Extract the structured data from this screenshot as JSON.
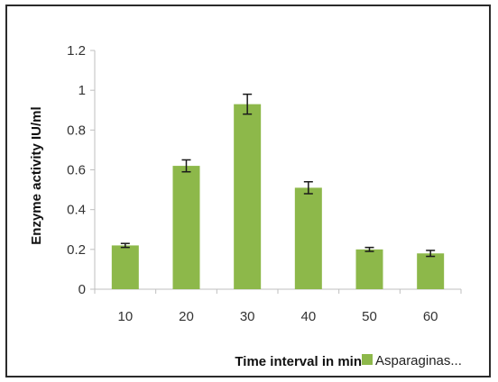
{
  "chart_data": {
    "type": "bar",
    "categories": [
      "10",
      "20",
      "30",
      "40",
      "50",
      "60"
    ],
    "series": [
      {
        "name": "Asparaginas...",
        "values": [
          0.22,
          0.62,
          0.93,
          0.51,
          0.2,
          0.18
        ],
        "error": [
          0.01,
          0.03,
          0.05,
          0.03,
          0.01,
          0.015
        ],
        "color": "#8db84a"
      }
    ],
    "xlabel": "Time interval in min",
    "ylabel": "Enzyme activity IU/ml",
    "ylim": [
      0,
      1.2
    ],
    "yticks": [
      "0",
      "0.2",
      "0.4",
      "0.6",
      "0.8",
      "1",
      "1.2"
    ],
    "grid": false,
    "legend": "bottom-right",
    "axis_color": "#bfbfbf"
  }
}
